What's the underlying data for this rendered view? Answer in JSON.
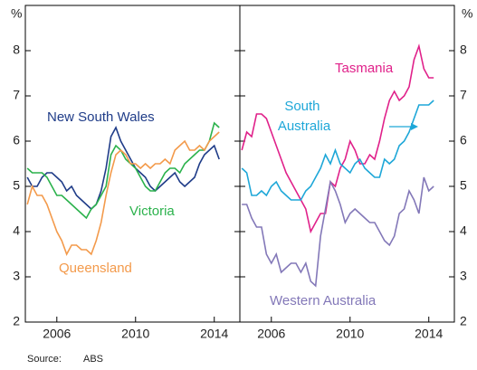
{
  "chart_data": [
    {
      "type": "line",
      "ylabel": "%",
      "x": [
        2004.5,
        2004.75,
        2005,
        2005.25,
        2005.5,
        2005.75,
        2006,
        2006.25,
        2006.5,
        2006.75,
        2007,
        2007.25,
        2007.5,
        2007.75,
        2008,
        2008.25,
        2008.5,
        2008.75,
        2009,
        2009.25,
        2009.5,
        2009.75,
        2010,
        2010.25,
        2010.5,
        2010.75,
        2011,
        2011.25,
        2011.5,
        2011.75,
        2012,
        2012.25,
        2012.5,
        2012.75,
        2013,
        2013.25,
        2013.5,
        2013.75,
        2014,
        2014.25
      ],
      "xlim": [
        2004.4,
        2015.3
      ],
      "xticks": [
        2006,
        2010,
        2014
      ],
      "ylim": [
        2,
        9
      ],
      "yticks": [
        2,
        3,
        4,
        5,
        6,
        7,
        8
      ],
      "series": [
        {
          "name": "New South Wales",
          "color": "#1f3c88",
          "values": [
            5.2,
            5.0,
            5.0,
            5.2,
            5.3,
            5.3,
            5.2,
            5.1,
            4.9,
            5.0,
            4.8,
            4.7,
            4.6,
            4.5,
            4.6,
            4.9,
            5.4,
            6.1,
            6.3,
            6.0,
            5.8,
            5.6,
            5.4,
            5.3,
            5.2,
            5.0,
            4.9,
            5.0,
            5.1,
            5.2,
            5.3,
            5.1,
            5.0,
            5.1,
            5.2,
            5.5,
            5.7,
            5.8,
            5.9,
            5.6
          ]
        },
        {
          "name": "Victoria",
          "color": "#2bb24c",
          "values": [
            5.4,
            5.3,
            5.3,
            5.3,
            5.2,
            5.0,
            4.8,
            4.8,
            4.7,
            4.6,
            4.5,
            4.4,
            4.3,
            4.5,
            4.6,
            4.8,
            5.0,
            5.7,
            5.9,
            5.8,
            5.6,
            5.5,
            5.4,
            5.2,
            5.0,
            4.9,
            4.9,
            5.1,
            5.3,
            5.4,
            5.4,
            5.3,
            5.5,
            5.6,
            5.7,
            5.8,
            5.8,
            6.0,
            6.4,
            6.3
          ]
        },
        {
          "name": "Queensland",
          "color": "#f39a4b",
          "values": [
            4.6,
            5.0,
            4.8,
            4.8,
            4.6,
            4.3,
            4.0,
            3.8,
            3.5,
            3.7,
            3.7,
            3.6,
            3.6,
            3.5,
            3.8,
            4.2,
            4.8,
            5.3,
            5.7,
            5.8,
            5.7,
            5.5,
            5.5,
            5.4,
            5.5,
            5.4,
            5.5,
            5.5,
            5.6,
            5.5,
            5.8,
            5.9,
            6.0,
            5.8,
            5.8,
            5.9,
            5.8,
            6.0,
            6.1,
            6.2
          ]
        }
      ]
    },
    {
      "type": "line",
      "ylabel": "%",
      "x": [
        2004.5,
        2004.75,
        2005,
        2005.25,
        2005.5,
        2005.75,
        2006,
        2006.25,
        2006.5,
        2006.75,
        2007,
        2007.25,
        2007.5,
        2007.75,
        2008,
        2008.25,
        2008.5,
        2008.75,
        2009,
        2009.25,
        2009.5,
        2009.75,
        2010,
        2010.25,
        2010.5,
        2010.75,
        2011,
        2011.25,
        2011.5,
        2011.75,
        2012,
        2012.25,
        2012.5,
        2012.75,
        2013,
        2013.25,
        2013.5,
        2013.75,
        2014,
        2014.25
      ],
      "xlim": [
        2004.4,
        2015.3
      ],
      "xticks": [
        2006,
        2010,
        2014
      ],
      "ylim": [
        2,
        9
      ],
      "yticks": [
        2,
        3,
        4,
        5,
        6,
        7,
        8
      ],
      "series": [
        {
          "name": "Tasmania",
          "color": "#e0218a",
          "values": [
            5.8,
            6.2,
            6.1,
            6.6,
            6.6,
            6.5,
            6.2,
            5.9,
            5.6,
            5.3,
            5.1,
            4.9,
            4.7,
            4.5,
            4.0,
            4.2,
            4.4,
            4.4,
            5.1,
            5.0,
            5.4,
            5.6,
            6.0,
            5.8,
            5.5,
            5.5,
            5.7,
            5.6,
            6.0,
            6.5,
            6.9,
            7.1,
            6.9,
            7.0,
            7.2,
            7.8,
            8.1,
            7.6,
            7.4,
            7.4
          ]
        },
        {
          "name": "South Australia",
          "color": "#1ea7d8",
          "values": [
            5.4,
            5.3,
            4.8,
            4.8,
            4.9,
            4.8,
            5.0,
            5.1,
            4.9,
            4.8,
            4.7,
            4.7,
            4.7,
            4.9,
            5.0,
            5.2,
            5.4,
            5.7,
            5.5,
            5.8,
            5.5,
            5.4,
            5.3,
            5.5,
            5.6,
            5.4,
            5.3,
            5.2,
            5.2,
            5.6,
            5.5,
            5.6,
            5.9,
            6.0,
            6.2,
            6.5,
            6.8,
            6.8,
            6.8,
            6.9
          ]
        },
        {
          "name": "Western Australia",
          "color": "#8378b8",
          "values": [
            4.6,
            4.6,
            4.3,
            4.1,
            4.1,
            3.5,
            3.3,
            3.5,
            3.1,
            3.2,
            3.3,
            3.3,
            3.1,
            3.3,
            2.9,
            2.8,
            3.9,
            4.5,
            5.1,
            4.9,
            4.6,
            4.2,
            4.4,
            4.5,
            4.4,
            4.3,
            4.2,
            4.2,
            4.0,
            3.8,
            3.7,
            3.9,
            4.4,
            4.5,
            4.9,
            4.7,
            4.4,
            5.2,
            4.9,
            5.0
          ]
        }
      ]
    }
  ],
  "source_label": "Source:",
  "source": "ABS"
}
